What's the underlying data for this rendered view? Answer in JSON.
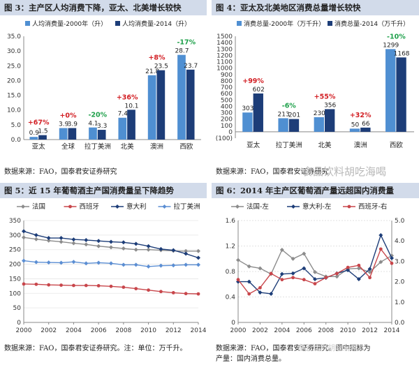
{
  "panels": [
    {
      "title": "图 3：主产区人均消费下降，亚太、北美增长较快",
      "source": "数据来源：FAO，国泰君安证券研究",
      "source2": "",
      "chart_data": {
        "type": "bar",
        "categories": [
          "亚太",
          "全球",
          "拉丁美洲",
          "北美",
          "澳洲",
          "西欧"
        ],
        "series": [
          {
            "name": "人均消费量-2000年（升）",
            "values": [
              0.9,
              3.9,
              4.1,
              7.4,
              21.8,
              28.7
            ],
            "labels": [
              "0.9",
              "3.9",
              "4.1",
              "7.4",
              "21.8",
              "28.7"
            ]
          },
          {
            "name": "人均消费量-2014（升）",
            "values": [
              1.5,
              3.9,
              3.3,
              10.1,
              23.5,
              23.7
            ],
            "labels": [
              "1.5",
              "3.9",
              "3.3",
              "10.1",
              "23.5",
              "23.7"
            ]
          }
        ],
        "annotations": [
          {
            "text": "+67%",
            "color": "#d21e23"
          },
          {
            "text": "+0%",
            "color": "#d21e23"
          },
          {
            "text": "-20%",
            "color": "#1ea04a"
          },
          {
            "text": "+36%",
            "color": "#d21e23"
          },
          {
            "text": "+8%",
            "color": "#d21e23"
          },
          {
            "text": "-17%",
            "color": "#1ea04a"
          }
        ],
        "yticks": [
          "0.0",
          "5.0",
          "10.0",
          "15.0",
          "20.0",
          "25.0",
          "30.0",
          "35.0"
        ],
        "ylim": [
          0,
          35
        ],
        "legend": "top",
        "colors": [
          "#4f8fd2",
          "#1d3d78"
        ]
      }
    },
    {
      "title": "图 4：亚太及北美地区消费总量增长较快",
      "source": "数据来源：FAO，国泰君安证券研究",
      "source2": "",
      "chart_data": {
        "type": "bar",
        "categories": [
          "亚太",
          "拉丁美洲",
          "北美",
          "澳洲",
          "西欧"
        ],
        "series": [
          {
            "name": "消费总量-2000年（万千升）",
            "values": [
              303,
              213,
              230,
              50,
              1299
            ],
            "labels": [
              "303",
              "213",
              "230",
              "50",
              "1299"
            ]
          },
          {
            "name": "消费总量-2014（万千升）",
            "values": [
              602,
              201,
              356,
              66,
              1168
            ],
            "labels": [
              "602",
              "201",
              "356",
              "66",
              "1168"
            ]
          }
        ],
        "annotations": [
          {
            "text": "+99%",
            "color": "#d21e23"
          },
          {
            "text": "-6%",
            "color": "#1ea04a"
          },
          {
            "text": "+55%",
            "color": "#d21e23"
          },
          {
            "text": "+32%",
            "color": "#d21e23"
          },
          {
            "text": "-10%",
            "color": "#1ea04a"
          }
        ],
        "yticks": [
          "(100)",
          "0",
          "100",
          "200",
          "300",
          "400",
          "500",
          "600",
          "700",
          "800",
          "900",
          "1000",
          "1100",
          "1200",
          "1300",
          "1400",
          "1500"
        ],
        "ylim": [
          -100,
          1500
        ],
        "legend": "top",
        "colors": [
          "#4f8fd2",
          "#1d3d78"
        ]
      }
    },
    {
      "title": "图 5：近 15 年葡萄酒主产国消费量呈下降趋势",
      "source": "数据来源：FAO，国泰君安证券研究。注：单位：万千升。",
      "source2": "",
      "chart_data": {
        "type": "line",
        "x": [
          2000,
          2001,
          2002,
          2003,
          2004,
          2005,
          2006,
          2007,
          2008,
          2009,
          2010,
          2011,
          2012,
          2013,
          2014
        ],
        "series": [
          {
            "name": "法国",
            "color": "#8c8c8c",
            "marker": "diamond",
            "values": [
              292,
              286,
              281,
              277,
              272,
              268,
              262,
              258,
              254,
              250,
              250,
              248,
              246,
              245,
              245
            ]
          },
          {
            "name": "西班牙",
            "color": "#c8464b",
            "marker": "circle",
            "values": [
              132,
              131,
              129,
              128,
              127,
              127,
              126,
              124,
              121,
              116,
              111,
              106,
              102,
              99,
              98
            ]
          },
          {
            "name": "意大利",
            "color": "#1d3d78",
            "marker": "diamond",
            "values": [
              313,
              300,
              290,
              290,
              285,
              283,
              280,
              277,
              275,
              270,
              262,
              252,
              248,
              236,
              222
            ]
          },
          {
            "name": "拉丁美洲",
            "color": "#5b8ed3",
            "marker": "diamond",
            "values": [
              212,
              207,
              206,
              205,
              208,
              203,
              205,
              203,
              198,
              198,
              192,
              195,
              196,
              198,
              198
            ]
          }
        ],
        "xticks": [
          "2000",
          "2002",
          "2004",
          "2006",
          "2008",
          "2010",
          "2012",
          "2014"
        ],
        "yticks": [
          "0",
          "50",
          "100",
          "150",
          "200",
          "250",
          "300",
          "350"
        ],
        "ylim": [
          0,
          350
        ],
        "legend": "top"
      }
    },
    {
      "title": "图 6：2014 年主产区葡萄酒产量远超国内消费量",
      "source": "数据来源：FAO，国泰君安证券研究。图中指标为",
      "source2": "产量：国内消费总量。",
      "chart_data": {
        "type": "line",
        "x": [
          2000,
          2001,
          2002,
          2003,
          2004,
          2005,
          2006,
          2007,
          2008,
          2009,
          2010,
          2011,
          2012,
          2013,
          2014
        ],
        "series": [
          {
            "name": "法国-左",
            "color": "#8c8c8c",
            "marker": "diamond",
            "axis": "left",
            "values": [
              0.98,
              0.88,
              0.85,
              0.76,
              1.14,
              1.0,
              1.08,
              0.79,
              0.72,
              0.72,
              0.84,
              0.85,
              0.79,
              0.95,
              1.05
            ]
          },
          {
            "name": "意大利-左",
            "color": "#1d3d78",
            "marker": "diamond",
            "axis": "left",
            "values": [
              0.64,
              0.64,
              0.47,
              0.45,
              0.76,
              0.77,
              0.85,
              0.68,
              0.7,
              0.77,
              0.82,
              0.68,
              0.84,
              1.37,
              1.01
            ]
          },
          {
            "name": "西班牙-右",
            "color": "#c8464b",
            "marker": "circle",
            "axis": "right",
            "values": [
              2.1,
              1.4,
              1.7,
              2.4,
              2.1,
              2.2,
              2.1,
              1.9,
              2.2,
              2.4,
              2.7,
              2.8,
              2.2,
              3.6,
              2.9
            ]
          }
        ],
        "xticks": [
          "2000",
          "2002",
          "2004",
          "2006",
          "2008",
          "2010",
          "2012",
          "2014"
        ],
        "yticks_left": [
          "0",
          "0.4",
          "0.8",
          "1.2",
          "1.6"
        ],
        "yticks_right": [
          "0.0",
          "1.0",
          "2.0",
          "3.0",
          "4.0",
          "5.0"
        ],
        "ylim_left": [
          0,
          1.6
        ],
        "ylim_right": [
          0,
          5
        ],
        "legend": "top"
      }
    }
  ],
  "watermarks": [
    "食品饮料胡吃海喝",
    "食品饮料胡吃海喝"
  ]
}
